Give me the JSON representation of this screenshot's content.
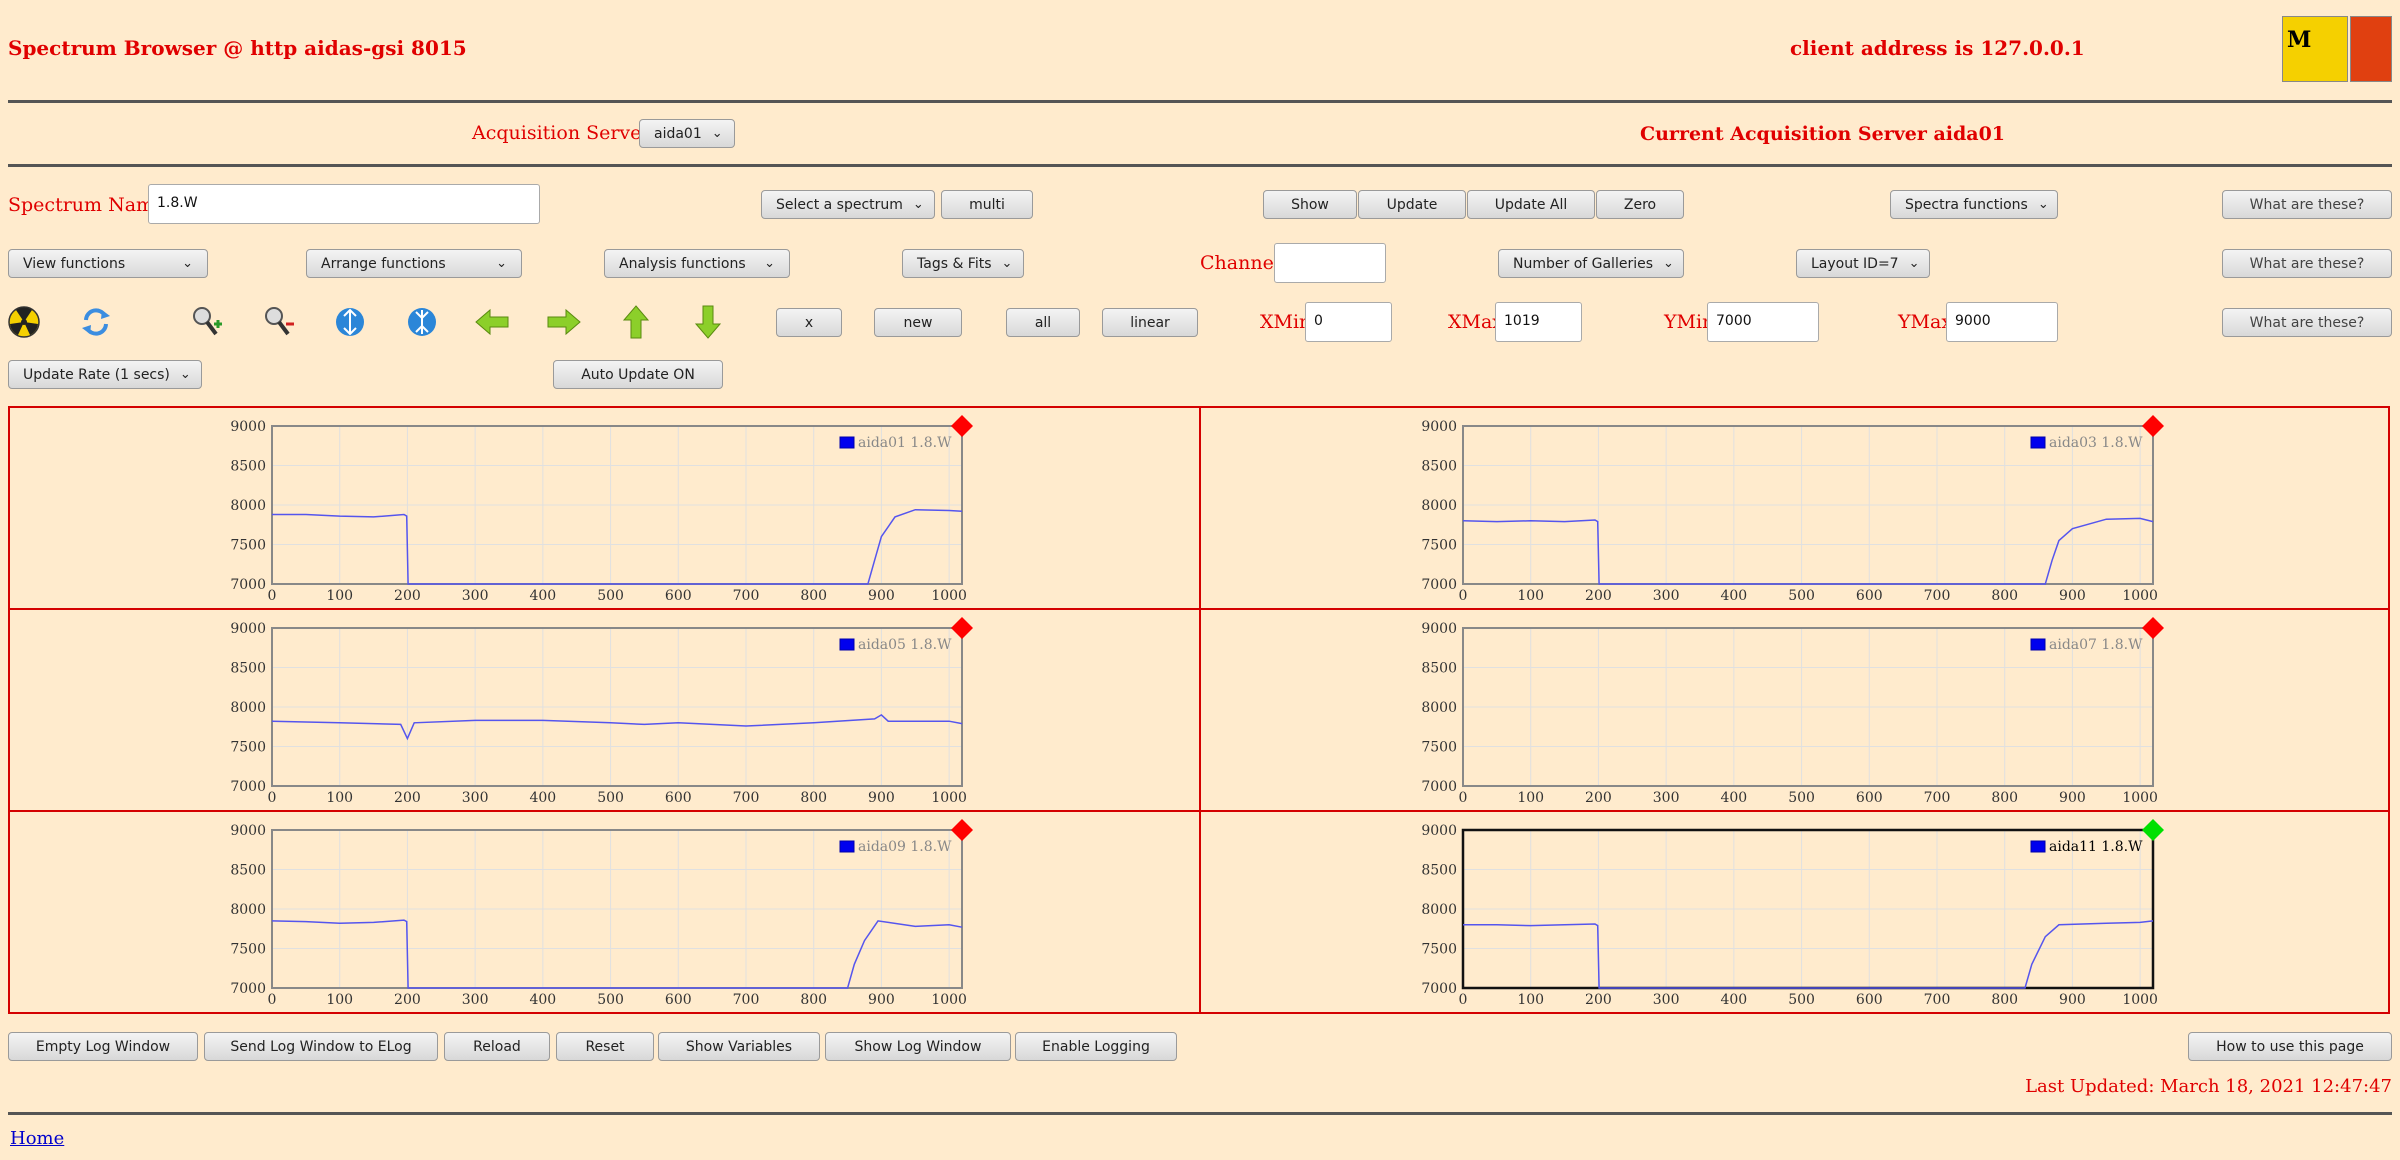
{
  "header": {
    "title": "Spectrum Browser @ http aidas-gsi 8015",
    "client_address": "client address is 127.0.0.1"
  },
  "acquisition": {
    "label": "Acquisition Servers",
    "server_select": "aida01",
    "current": "Current Acquisition Server aida01"
  },
  "row1": {
    "spectrum_name_label": "Spectrum Name:",
    "spectrum_name_value": "1.8.W",
    "select_spectrum": "Select a spectrum",
    "multi": "multi",
    "show": "Show",
    "update": "Update",
    "update_all": "Update All",
    "zero": "Zero",
    "spectra_functions": "Spectra functions",
    "what": "What are these?"
  },
  "row2": {
    "view_functions": "View functions",
    "arrange_functions": "Arrange functions",
    "analysis_functions": "Analysis functions",
    "tags_fits": "Tags & Fits",
    "channel_label": "Channel:",
    "channel_value": "",
    "galleries": "Number of Galleries",
    "layout": "Layout ID=7",
    "what": "What are these?"
  },
  "row3": {
    "icons": [
      "radiation-icon",
      "refresh-icon",
      "zoom-in-icon",
      "zoom-out-icon",
      "expand-vertical-icon",
      "compress-vertical-icon",
      "arrow-left-icon",
      "arrow-right-icon",
      "arrow-up-icon",
      "arrow-down-icon"
    ],
    "x": "x",
    "new": "new",
    "all": "all",
    "linear": "linear",
    "xmin_label": "XMin",
    "xmin_value": "0",
    "xmax_label": "XMax",
    "xmax_value": "1019",
    "ymin_label": "YMin",
    "ymin_value": "7000",
    "ymax_label": "YMax",
    "ymax_value": "9000",
    "what": "What are these?"
  },
  "row4": {
    "update_rate": "Update Rate (1 secs)",
    "auto_update": "Auto Update ON"
  },
  "colors": {
    "background": "#ffebcd",
    "accent_red": "#e00000",
    "trace_blue": "#5555ee",
    "marker_red": "#ff0000",
    "marker_green": "#00e000"
  },
  "chart_data": [
    {
      "type": "line",
      "legend": "aida01 1.8.W",
      "marker": "red",
      "xlim": [
        0,
        1019
      ],
      "ylim": [
        7000,
        9000
      ],
      "xticks": [
        0,
        100,
        200,
        300,
        400,
        500,
        600,
        700,
        800,
        900,
        1000
      ],
      "yticks": [
        7000,
        7500,
        8000,
        8500,
        9000
      ],
      "series": [
        {
          "name": "aida01 1.8.W",
          "x": [
            0,
            50,
            100,
            150,
            195,
            199,
            201,
            205,
            880,
            890,
            900,
            920,
            950,
            1000,
            1019
          ],
          "y": [
            7880,
            7880,
            7860,
            7850,
            7880,
            7860,
            7000,
            7000,
            7000,
            7300,
            7600,
            7850,
            7940,
            7930,
            7920
          ]
        }
      ]
    },
    {
      "type": "line",
      "legend": "aida03 1.8.W",
      "marker": "red",
      "xlim": [
        0,
        1019
      ],
      "ylim": [
        7000,
        9000
      ],
      "xticks": [
        0,
        100,
        200,
        300,
        400,
        500,
        600,
        700,
        800,
        900,
        1000
      ],
      "yticks": [
        7000,
        7500,
        8000,
        8500,
        9000
      ],
      "series": [
        {
          "name": "aida03 1.8.W",
          "x": [
            0,
            50,
            100,
            150,
            195,
            199,
            201,
            205,
            860,
            870,
            880,
            900,
            950,
            1000,
            1019
          ],
          "y": [
            7800,
            7790,
            7800,
            7790,
            7810,
            7790,
            7000,
            7000,
            7000,
            7300,
            7550,
            7700,
            7820,
            7830,
            7790
          ]
        }
      ]
    },
    {
      "type": "line",
      "legend": "aida05 1.8.W",
      "marker": "red",
      "xlim": [
        0,
        1019
      ],
      "ylim": [
        7000,
        9000
      ],
      "xticks": [
        0,
        100,
        200,
        300,
        400,
        500,
        600,
        700,
        800,
        900,
        1000
      ],
      "yticks": [
        7000,
        7500,
        8000,
        8500,
        9000
      ],
      "series": [
        {
          "name": "aida05 1.8.W",
          "x": [
            0,
            100,
            190,
            200,
            210,
            300,
            400,
            500,
            550,
            600,
            700,
            800,
            890,
            900,
            910,
            1000,
            1019
          ],
          "y": [
            7820,
            7800,
            7780,
            7600,
            7800,
            7830,
            7830,
            7800,
            7780,
            7800,
            7760,
            7800,
            7850,
            7900,
            7820,
            7820,
            7790
          ]
        }
      ]
    },
    {
      "type": "line",
      "legend": "aida07 1.8.W",
      "marker": "red",
      "xlim": [
        0,
        1019
      ],
      "ylim": [
        7000,
        9000
      ],
      "xticks": [
        0,
        100,
        200,
        300,
        400,
        500,
        600,
        700,
        800,
        900,
        1000
      ],
      "yticks": [
        7000,
        7500,
        8000,
        8500,
        9000
      ],
      "series": [
        {
          "name": "aida07 1.8.W",
          "x": [],
          "y": []
        }
      ]
    },
    {
      "type": "line",
      "legend": "aida09 1.8.W",
      "marker": "red",
      "xlim": [
        0,
        1019
      ],
      "ylim": [
        7000,
        9000
      ],
      "xticks": [
        0,
        100,
        200,
        300,
        400,
        500,
        600,
        700,
        800,
        900,
        1000
      ],
      "yticks": [
        7000,
        7500,
        8000,
        8500,
        9000
      ],
      "series": [
        {
          "name": "aida09 1.8.W",
          "x": [
            0,
            50,
            100,
            150,
            195,
            199,
            201,
            205,
            850,
            860,
            875,
            895,
            950,
            1000,
            1019
          ],
          "y": [
            7850,
            7840,
            7820,
            7830,
            7860,
            7840,
            7000,
            7000,
            7000,
            7300,
            7600,
            7850,
            7780,
            7800,
            7770
          ]
        }
      ]
    },
    {
      "type": "line",
      "legend": "aida11 1.8.W",
      "marker": "green",
      "xlim": [
        0,
        1019
      ],
      "ylim": [
        7000,
        9000
      ],
      "xticks": [
        0,
        100,
        200,
        300,
        400,
        500,
        600,
        700,
        800,
        900,
        1000
      ],
      "yticks": [
        7000,
        7500,
        8000,
        8500,
        9000
      ],
      "series": [
        {
          "name": "aida11 1.8.W",
          "x": [
            0,
            50,
            100,
            150,
            195,
            199,
            201,
            205,
            830,
            840,
            860,
            880,
            950,
            1000,
            1019
          ],
          "y": [
            7800,
            7800,
            7790,
            7800,
            7810,
            7790,
            7000,
            7000,
            7000,
            7300,
            7650,
            7800,
            7820,
            7830,
            7850
          ]
        }
      ]
    }
  ],
  "footer_buttons": {
    "empty_log": "Empty Log Window",
    "send_log": "Send Log Window to ELog",
    "reload": "Reload",
    "reset": "Reset",
    "show_variables": "Show Variables",
    "show_log": "Show Log Window",
    "enable_logging": "Enable Logging",
    "how_to": "How to use this page"
  },
  "last_updated": "Last Updated: March 18, 2021 12:47:47",
  "home_link": "Home"
}
